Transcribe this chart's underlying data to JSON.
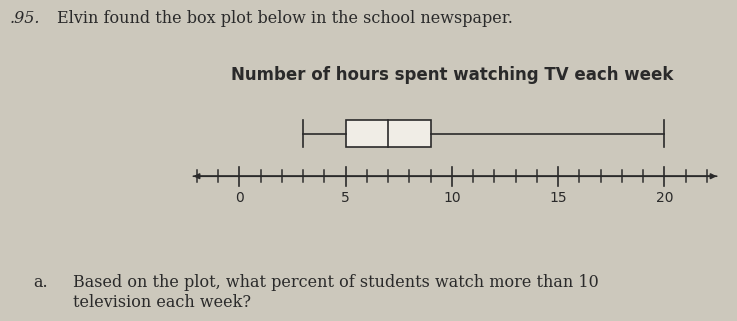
{
  "title": "Number of hours spent watching TV each week",
  "title_fontsize": 12,
  "title_fontweight": "bold",
  "whisker_min": 3,
  "q1": 5,
  "median": 7,
  "q3": 9,
  "whisker_max": 20,
  "axis_min": -2,
  "axis_max": 22,
  "xticks": [
    0,
    5,
    10,
    15,
    20
  ],
  "tick_fontsize": 10,
  "line_color": "#2a2a2a",
  "line_width": 1.2,
  "problem_number": ".95.",
  "problem_text": "Elvin found the box plot below in the school newspaper.",
  "question_label": "a.",
  "question_text": "Based on the plot, what percent of students watch more than 10\ntelevision each week?",
  "background_color": "#ccc8bc",
  "text_fontsize": 11.5,
  "box_facecolor": "#f0ede6"
}
